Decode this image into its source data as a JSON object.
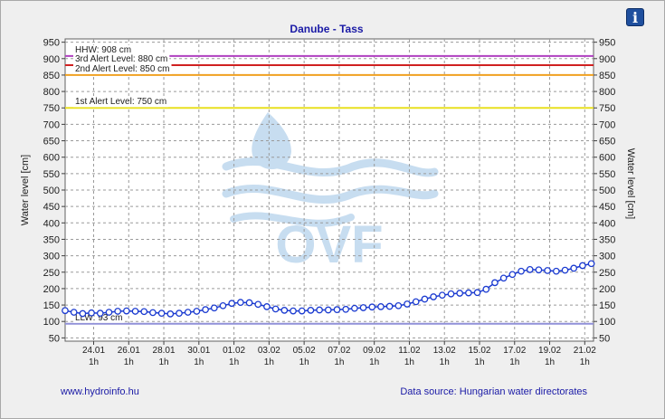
{
  "info_button": {
    "icon": "info-icon",
    "label": "i"
  },
  "footer": {
    "link": "www.hydroinfo.hu",
    "source": "Data source: Hungarian water directorates"
  },
  "watermark": {
    "logo": "ovf-logo",
    "text": "OVF"
  },
  "chart_data": {
    "type": "line",
    "title": "Danube - Tass",
    "ylabel": "Water level [cm]",
    "ylabel_right": "Water level [cm]",
    "ylim": [
      40,
      960
    ],
    "yticks": [
      50,
      100,
      150,
      200,
      250,
      300,
      350,
      400,
      450,
      500,
      550,
      600,
      650,
      700,
      750,
      800,
      850,
      900,
      950
    ],
    "grid": true,
    "xrange": [
      "2024-01-22T10:00",
      "2024-02-21T13:00"
    ],
    "xticks": [
      {
        "date": "24.01",
        "time": "1h",
        "at": "2024-01-24T01:00"
      },
      {
        "date": "26.01",
        "time": "1h",
        "at": "2024-01-26T01:00"
      },
      {
        "date": "28.01",
        "time": "1h",
        "at": "2024-01-28T01:00"
      },
      {
        "date": "30.01",
        "time": "1h",
        "at": "2024-01-30T01:00"
      },
      {
        "date": "01.02",
        "time": "1h",
        "at": "2024-02-01T01:00"
      },
      {
        "date": "03.02",
        "time": "1h",
        "at": "2024-02-03T01:00"
      },
      {
        "date": "05.02",
        "time": "1h",
        "at": "2024-02-05T01:00"
      },
      {
        "date": "07.02",
        "time": "1h",
        "at": "2024-02-07T01:00"
      },
      {
        "date": "09.02",
        "time": "1h",
        "at": "2024-02-09T01:00"
      },
      {
        "date": "11.02",
        "time": "1h",
        "at": "2024-02-11T01:00"
      },
      {
        "date": "13.02",
        "time": "1h",
        "at": "2024-02-13T01:00"
      },
      {
        "date": "15.02",
        "time": "1h",
        "at": "2024-02-15T01:00"
      },
      {
        "date": "17.02",
        "time": "1h",
        "at": "2024-02-17T01:00"
      },
      {
        "date": "19.02",
        "time": "1h",
        "at": "2024-02-19T01:00"
      },
      {
        "date": "21.02",
        "time": "1h",
        "at": "2024-02-21T01:00"
      }
    ],
    "reference_lines": [
      {
        "label": "HHW: 908 cm",
        "value": 908,
        "color": "#b040c0"
      },
      {
        "label": "3rd Alert Level: 880 cm",
        "value": 880,
        "color": "#d02020"
      },
      {
        "label": "2nd Alert Level: 850 cm",
        "value": 850,
        "color": "#f0a020"
      },
      {
        "label": "1st Alert Level: 750 cm",
        "value": 750,
        "color": "#e8e020"
      },
      {
        "label": "LLW: 93 cm",
        "value": 93,
        "color": "#9090d8"
      }
    ],
    "series": [
      {
        "color": "#1a3ad0",
        "x": [
          "2024-01-22T10:00",
          "2024-01-22T22:00",
          "2024-01-23T10:00",
          "2024-01-23T22:00",
          "2024-01-24T10:00",
          "2024-01-24T22:00",
          "2024-01-25T10:00",
          "2024-01-25T22:00",
          "2024-01-26T10:00",
          "2024-01-26T22:00",
          "2024-01-27T10:00",
          "2024-01-27T22:00",
          "2024-01-28T10:00",
          "2024-01-28T22:00",
          "2024-01-29T10:00",
          "2024-01-29T22:00",
          "2024-01-30T10:00",
          "2024-01-30T22:00",
          "2024-01-31T10:00",
          "2024-01-31T22:00",
          "2024-02-01T10:00",
          "2024-02-01T22:00",
          "2024-02-02T10:00",
          "2024-02-02T22:00",
          "2024-02-03T10:00",
          "2024-02-03T22:00",
          "2024-02-04T10:00",
          "2024-02-04T22:00",
          "2024-02-05T10:00",
          "2024-02-05T22:00",
          "2024-02-06T10:00",
          "2024-02-06T22:00",
          "2024-02-07T10:00",
          "2024-02-07T22:00",
          "2024-02-08T10:00",
          "2024-02-08T22:00",
          "2024-02-09T10:00",
          "2024-02-09T22:00",
          "2024-02-10T10:00",
          "2024-02-10T22:00",
          "2024-02-11T10:00",
          "2024-02-11T22:00",
          "2024-02-12T10:00",
          "2024-02-12T22:00",
          "2024-02-13T10:00",
          "2024-02-13T22:00",
          "2024-02-14T10:00",
          "2024-02-14T22:00",
          "2024-02-15T10:00",
          "2024-02-15T22:00",
          "2024-02-16T10:00",
          "2024-02-16T22:00",
          "2024-02-17T10:00",
          "2024-02-17T22:00",
          "2024-02-18T10:00",
          "2024-02-18T22:00",
          "2024-02-19T10:00",
          "2024-02-19T22:00",
          "2024-02-20T10:00",
          "2024-02-20T22:00",
          "2024-02-21T10:00"
        ],
        "y": [
          133,
          128,
          124,
          126,
          125,
          128,
          131,
          132,
          131,
          130,
          127,
          125,
          123,
          125,
          128,
          131,
          136,
          141,
          148,
          155,
          158,
          157,
          152,
          145,
          138,
          134,
          132,
          132,
          134,
          135,
          135,
          136,
          137,
          140,
          142,
          144,
          145,
          146,
          148,
          153,
          160,
          168,
          175,
          180,
          184,
          186,
          187,
          188,
          198,
          218,
          232,
          243,
          253,
          258,
          257,
          255,
          253,
          256,
          262,
          270,
          276
        ]
      }
    ]
  }
}
